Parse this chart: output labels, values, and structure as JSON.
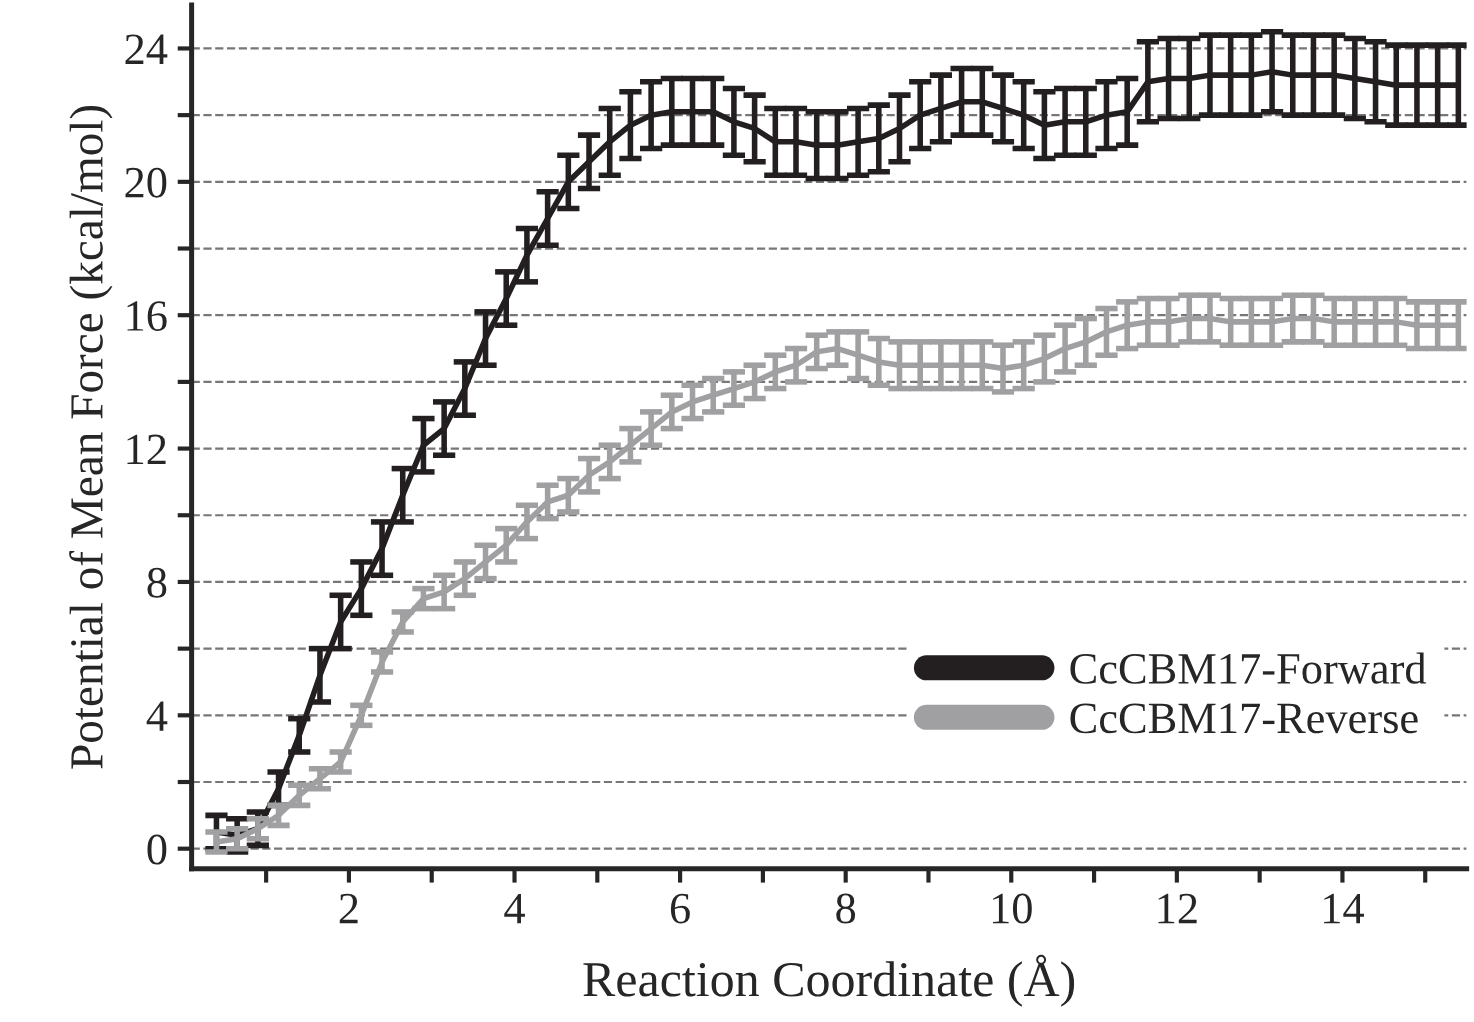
{
  "chart_data": {
    "type": "line",
    "xlabel": "Reaction Coordinate (Å)",
    "ylabel": "Potential of Mean Force (kcal/mol)",
    "x": [
      0.4,
      0.65,
      0.9,
      1.15,
      1.4,
      1.65,
      1.9,
      2.15,
      2.4,
      2.65,
      2.9,
      3.15,
      3.4,
      3.65,
      3.9,
      4.15,
      4.4,
      4.65,
      4.9,
      5.15,
      5.4,
      5.65,
      5.9,
      6.15,
      6.4,
      6.65,
      6.9,
      7.15,
      7.4,
      7.65,
      7.9,
      8.15,
      8.4,
      8.65,
      8.9,
      9.15,
      9.4,
      9.65,
      9.9,
      10.15,
      10.4,
      10.65,
      10.9,
      11.15,
      11.4,
      11.65,
      11.9,
      12.15,
      12.4,
      12.65,
      12.9,
      13.15,
      13.4,
      13.65,
      13.9,
      14.15,
      14.4,
      14.65,
      14.9,
      15.15,
      15.4
    ],
    "series": [
      {
        "name": "CcCBM17-Forward",
        "color": "#231f20",
        "values": [
          0.5,
          0.4,
          0.6,
          1.8,
          3.4,
          5.2,
          6.8,
          7.8,
          9.0,
          10.6,
          12.1,
          12.6,
          13.8,
          15.3,
          16.5,
          17.8,
          18.9,
          20.0,
          20.6,
          21.2,
          21.7,
          22.0,
          22.1,
          22.1,
          22.1,
          21.8,
          21.6,
          21.2,
          21.2,
          21.1,
          21.1,
          21.2,
          21.3,
          21.6,
          22.0,
          22.2,
          22.4,
          22.4,
          22.2,
          22.0,
          21.7,
          21.8,
          21.8,
          22.0,
          22.1,
          23.0,
          23.1,
          23.1,
          23.2,
          23.2,
          23.2,
          23.3,
          23.2,
          23.2,
          23.2,
          23.1,
          23.0,
          22.9,
          22.9,
          22.9,
          22.9
        ],
        "errors": [
          0.5,
          0.5,
          0.5,
          0.5,
          0.5,
          0.8,
          0.8,
          0.8,
          0.8,
          0.8,
          0.8,
          0.8,
          0.8,
          0.8,
          0.8,
          0.8,
          0.8,
          0.8,
          0.8,
          1.0,
          1.0,
          1.0,
          1.0,
          1.0,
          1.0,
          1.0,
          1.0,
          1.0,
          1.0,
          1.0,
          1.0,
          1.0,
          1.0,
          1.0,
          1.0,
          1.0,
          1.0,
          1.0,
          1.0,
          1.0,
          1.0,
          1.0,
          1.0,
          1.0,
          1.0,
          1.2,
          1.2,
          1.2,
          1.2,
          1.2,
          1.2,
          1.2,
          1.2,
          1.2,
          1.2,
          1.2,
          1.2,
          1.2,
          1.2,
          1.2,
          1.2
        ]
      },
      {
        "name": "CcCBM17-Reverse",
        "color": "#a0a0a2",
        "values": [
          0.2,
          0.3,
          0.6,
          1.0,
          1.6,
          2.1,
          2.6,
          4.0,
          5.6,
          6.8,
          7.5,
          7.7,
          8.1,
          8.6,
          9.1,
          9.8,
          10.4,
          10.6,
          11.2,
          11.6,
          12.1,
          12.6,
          13.1,
          13.4,
          13.6,
          13.8,
          14.0,
          14.3,
          14.5,
          14.9,
          15.0,
          14.8,
          14.6,
          14.5,
          14.5,
          14.5,
          14.5,
          14.5,
          14.4,
          14.5,
          14.7,
          15.0,
          15.2,
          15.5,
          15.7,
          15.8,
          15.8,
          15.9,
          15.9,
          15.8,
          15.8,
          15.8,
          15.9,
          15.9,
          15.8,
          15.8,
          15.8,
          15.8,
          15.7,
          15.7,
          15.7
        ],
        "errors": [
          0.3,
          0.3,
          0.3,
          0.3,
          0.3,
          0.3,
          0.3,
          0.3,
          0.3,
          0.3,
          0.3,
          0.5,
          0.5,
          0.5,
          0.5,
          0.5,
          0.5,
          0.5,
          0.5,
          0.5,
          0.5,
          0.5,
          0.5,
          0.5,
          0.5,
          0.5,
          0.5,
          0.5,
          0.5,
          0.5,
          0.5,
          0.7,
          0.7,
          0.7,
          0.7,
          0.7,
          0.7,
          0.7,
          0.7,
          0.7,
          0.7,
          0.7,
          0.7,
          0.7,
          0.7,
          0.7,
          0.7,
          0.7,
          0.7,
          0.7,
          0.7,
          0.7,
          0.7,
          0.7,
          0.7,
          0.7,
          0.7,
          0.7,
          0.7,
          0.7,
          0.7
        ]
      }
    ],
    "xlim": [
      0.1,
      15.5
    ],
    "ylim": [
      -0.6,
      25.3
    ],
    "xticks": [
      {
        "value": 1,
        "label": null
      },
      2,
      {
        "value": 3,
        "label": null
      },
      4,
      {
        "value": 5,
        "label": null
      },
      6,
      {
        "value": 7,
        "label": null
      },
      8,
      {
        "value": 9,
        "label": null
      },
      10,
      {
        "value": 11,
        "label": null
      },
      12,
      {
        "value": 13,
        "label": null
      },
      14,
      {
        "value": 15,
        "label": null
      }
    ],
    "yticks": [
      0,
      {
        "value": 2,
        "label": null
      },
      4,
      {
        "value": 6,
        "label": null
      },
      8,
      {
        "value": 10,
        "label": null
      },
      12,
      {
        "value": 14,
        "label": null
      },
      16,
      {
        "value": 18,
        "label": null
      },
      20,
      {
        "value": 22,
        "label": null
      },
      24
    ],
    "grid": "y",
    "legend": "bottom right",
    "marker": "none",
    "line_style": "solid"
  }
}
